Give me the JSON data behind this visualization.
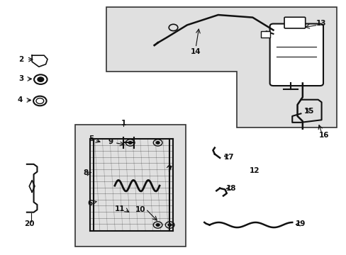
{
  "bg_color": "#ffffff",
  "diagram_bg": "#e0e0e0",
  "border_color": "#333333",
  "line_color": "#111111",
  "figsize": [
    4.89,
    3.6
  ],
  "dpi": 100
}
